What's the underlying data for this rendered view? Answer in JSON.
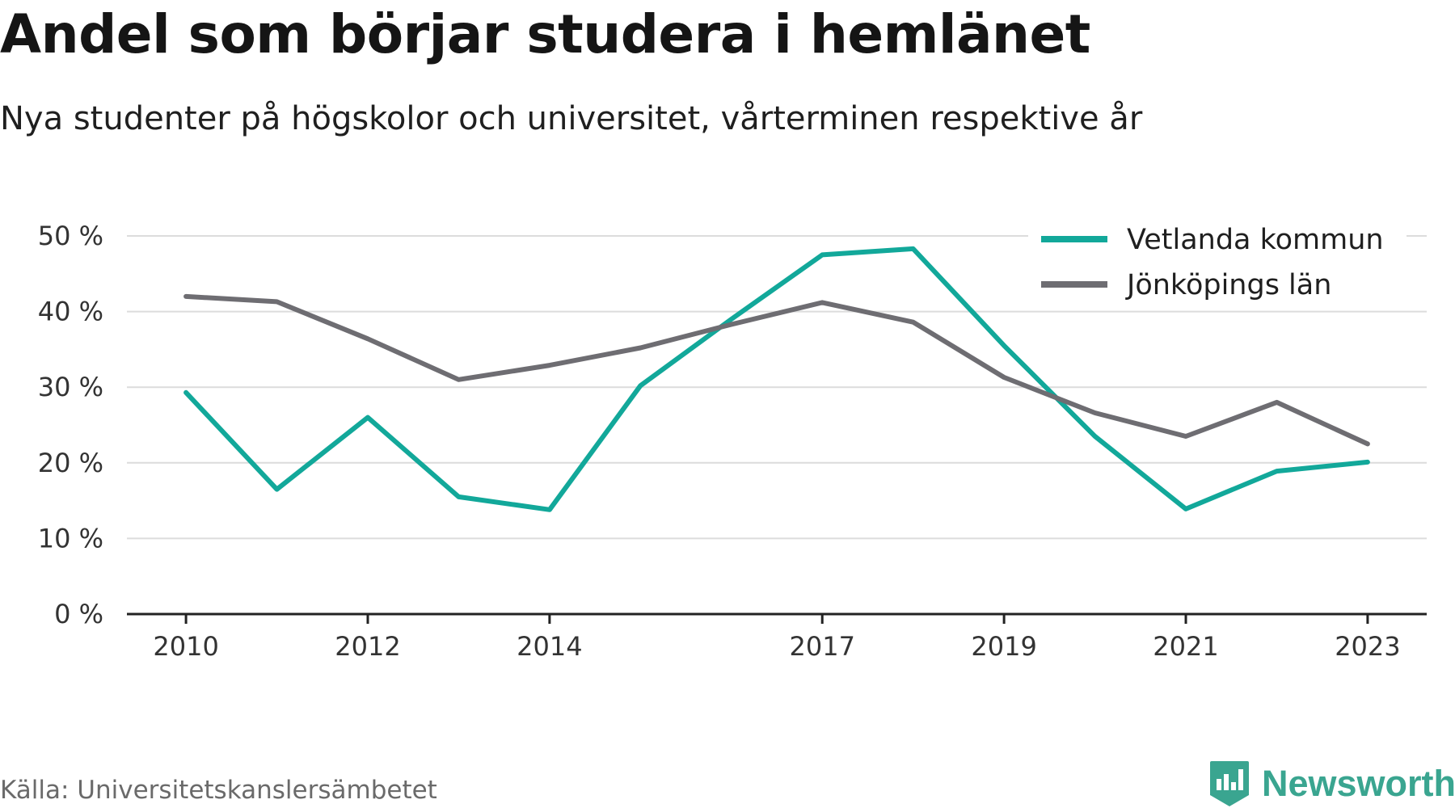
{
  "header": {
    "title": "Andel som börjar studera i hemlänet",
    "subtitle": "Nya studenter på högskolor och universitet, vårterminen respektive år"
  },
  "footer": {
    "source": "Källa: Universitetskanslersämbetet",
    "brand": "Newsworthy",
    "brand_icon": "newsworthy-logo-icon",
    "brand_color": "#3aa590"
  },
  "chart_data": {
    "type": "line",
    "x": [
      2010,
      2011,
      2012,
      2013,
      2014,
      2015,
      2016,
      2017,
      2018,
      2019,
      2020,
      2021,
      2022,
      2023
    ],
    "x_tick_labels": [
      "2010",
      "2012",
      "2014",
      "2017",
      "2019",
      "2021",
      "2023"
    ],
    "y_tick_values": [
      0,
      10,
      20,
      30,
      40,
      50
    ],
    "y_tick_labels": [
      "0 %",
      "10 %",
      "20 %",
      "30 %",
      "40 %",
      "50 %"
    ],
    "ylim": [
      0,
      50
    ],
    "xlim": [
      2009.35,
      2023.65
    ],
    "grid": "horizontal",
    "legend_position": "top-right",
    "series": [
      {
        "name": "Vetlanda kommun",
        "color": "#12a89a",
        "values": [
          29.3,
          16.5,
          26.0,
          15.5,
          13.8,
          30.2,
          39.0,
          47.5,
          48.3,
          35.5,
          23.5,
          13.9,
          18.9,
          20.1
        ]
      },
      {
        "name": "Jönköpings län",
        "color": "#6e6d72",
        "values": [
          42.0,
          41.3,
          36.4,
          31.0,
          32.9,
          35.2,
          38.3,
          41.2,
          38.6,
          31.3,
          26.6,
          23.5,
          28.0,
          22.5
        ]
      }
    ]
  }
}
